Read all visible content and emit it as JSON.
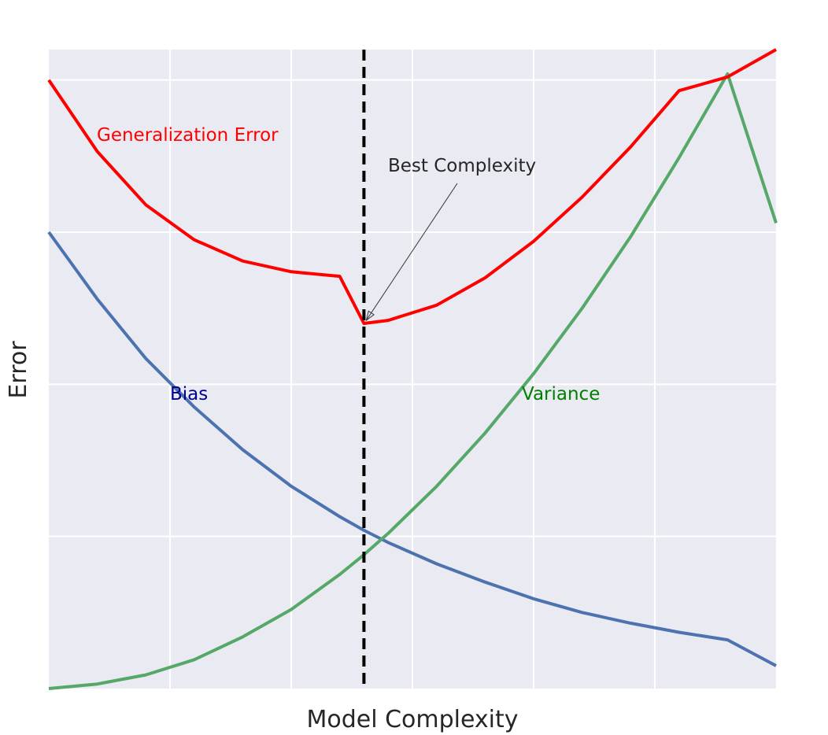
{
  "chart_data": {
    "type": "line",
    "title": "",
    "xlabel": "Model Complexity",
    "ylabel": "Error",
    "xlim": [
      0,
      6
    ],
    "ylim": [
      0,
      4.2
    ],
    "grid": true,
    "x_ticks_shown": false,
    "y_ticks_shown": false,
    "vertical_marker": {
      "x": 2.6,
      "style": "dashed",
      "color": "#000000"
    },
    "series": [
      {
        "name": "Bias",
        "color": "#4c72b0",
        "label_color": "#00008b",
        "x": [
          0,
          0.4,
          0.8,
          1.2,
          1.6,
          2.0,
          2.4,
          2.6,
          2.8,
          3.2,
          3.6,
          4.0,
          4.4,
          4.8,
          5.2,
          5.6,
          6.0
        ],
        "y": [
          3.0,
          2.56,
          2.17,
          1.85,
          1.57,
          1.33,
          1.13,
          1.04,
          0.96,
          0.82,
          0.7,
          0.59,
          0.5,
          0.43,
          0.37,
          0.32,
          0.15
        ]
      },
      {
        "name": "Variance",
        "color": "#55a868",
        "label_color": "#008000",
        "x": [
          0,
          0.4,
          0.8,
          1.2,
          1.6,
          2.0,
          2.4,
          2.6,
          2.8,
          3.2,
          3.6,
          4.0,
          4.4,
          4.8,
          5.2,
          5.6,
          6.0
        ],
        "y": [
          0.0,
          0.03,
          0.09,
          0.19,
          0.34,
          0.52,
          0.75,
          0.88,
          1.02,
          1.33,
          1.68,
          2.07,
          2.5,
          2.97,
          3.49,
          4.04,
          3.06
        ]
      },
      {
        "name": "Generalization Error",
        "color": "#ff0000",
        "label_color": "#ff0000",
        "x": [
          0,
          0.4,
          0.8,
          1.2,
          1.6,
          2.0,
          2.4,
          2.6,
          2.8,
          3.2,
          3.6,
          4.0,
          4.4,
          4.8,
          5.2,
          5.6,
          6.0
        ],
        "y": [
          4.0,
          3.53,
          3.18,
          2.95,
          2.81,
          2.74,
          2.71,
          2.4,
          2.42,
          2.52,
          2.7,
          2.94,
          3.23,
          3.56,
          3.93,
          4.02,
          4.2
        ]
      }
    ],
    "annotations": [
      {
        "text": "Best Complexity",
        "arrow_to": {
          "x": 2.6,
          "y": 2.4
        }
      }
    ],
    "series_labels": [
      {
        "text": "Generalization Error",
        "series": "Generalization Error"
      },
      {
        "text": "Bias",
        "series": "Bias"
      },
      {
        "text": "Variance",
        "series": "Variance"
      }
    ]
  }
}
